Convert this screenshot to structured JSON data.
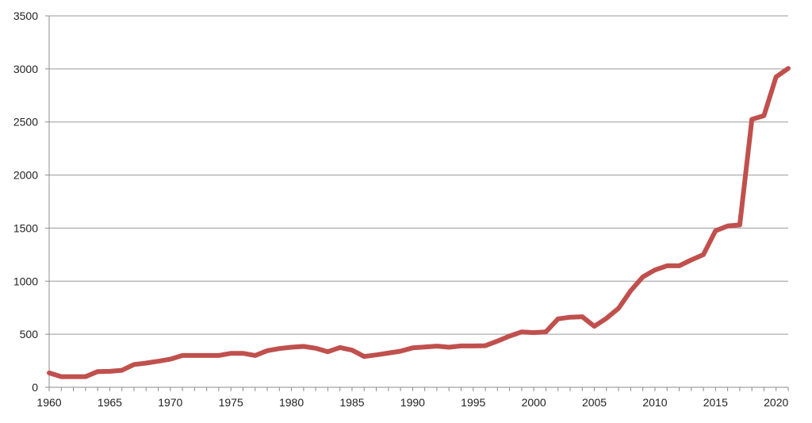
{
  "chart_data": {
    "type": "line",
    "title": "",
    "xlabel": "",
    "ylabel": "",
    "xlim": [
      1960,
      2021
    ],
    "ylim": [
      0,
      3500
    ],
    "yticks": [
      0,
      500,
      1000,
      1500,
      2000,
      2500,
      3000,
      3500
    ],
    "xticks": [
      1960,
      1965,
      1970,
      1975,
      1980,
      1985,
      1990,
      1995,
      2000,
      2005,
      2010,
      2015,
      2020
    ],
    "grid": "horizontal",
    "legend": "none",
    "line_color": "#c0504d",
    "series": [
      {
        "x": [
          1960,
          1961,
          1962,
          1963,
          1964,
          1965,
          1966,
          1967,
          1968,
          1969,
          1970,
          1971,
          1972,
          1973,
          1974,
          1975,
          1976,
          1977,
          1978,
          1979,
          1980,
          1981,
          1982,
          1983,
          1984,
          1985,
          1986,
          1987,
          1988,
          1989,
          1990,
          1991,
          1992,
          1993,
          1994,
          1995,
          1996,
          1997,
          1998,
          1999,
          2000,
          2001,
          2002,
          2003,
          2004,
          2005,
          2006,
          2007,
          2008,
          2009,
          2010,
          2011,
          2012,
          2013,
          2014,
          2015,
          2016,
          2017,
          2018,
          2019,
          2020,
          2021
        ],
        "values": [
          135,
          100,
          100,
          100,
          148,
          150,
          160,
          215,
          228,
          245,
          265,
          300,
          300,
          300,
          300,
          320,
          320,
          300,
          345,
          365,
          378,
          385,
          368,
          335,
          375,
          350,
          290,
          305,
          322,
          340,
          372,
          380,
          388,
          378,
          390,
          390,
          392,
          435,
          482,
          522,
          515,
          522,
          645,
          660,
          665,
          575,
          650,
          745,
          910,
          1040,
          1105,
          1145,
          1145,
          1200,
          1250,
          1475,
          1520,
          1530,
          2525,
          2560,
          2925,
          3005
        ]
      }
    ]
  }
}
